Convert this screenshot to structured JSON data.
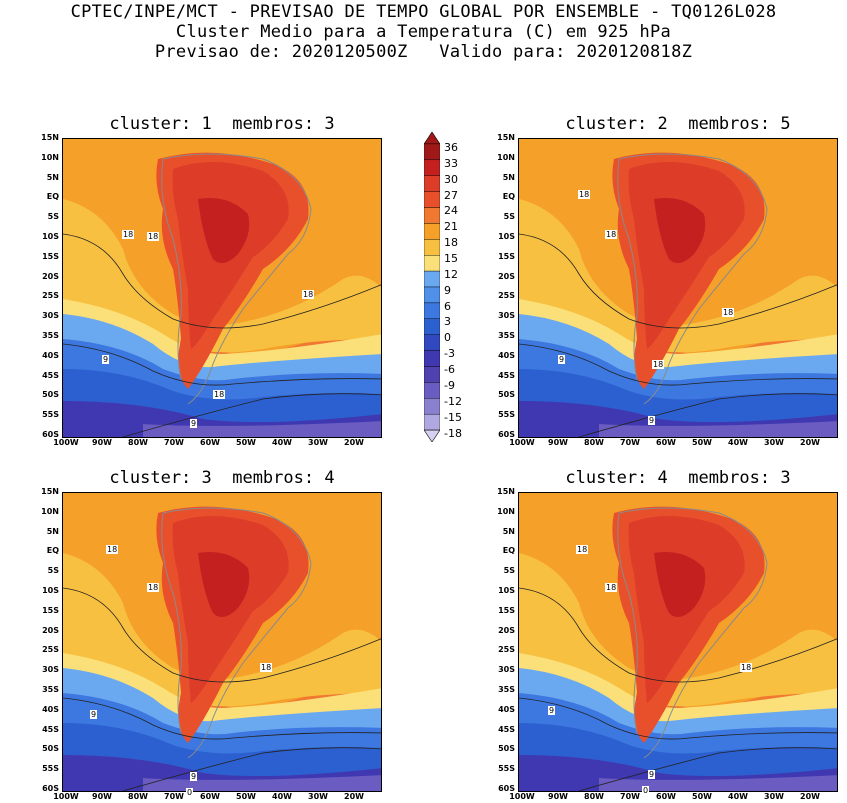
{
  "header": {
    "line1": "CPTEC/INPE/MCT - PREVISAO DE TEMPO GLOBAL POR ENSEMBLE - TQ0126L028",
    "line2": "Cluster Medio para a Temperatura (C) em 925 hPa",
    "line3": "Previsao de: 2020120500Z   Valido para: 2020120818Z"
  },
  "panels": [
    {
      "title": "cluster: 1  membros: 3",
      "contours": [
        "18",
        "18",
        "18",
        "18",
        "9",
        "9"
      ]
    },
    {
      "title": "cluster: 2  membros: 5",
      "contours": [
        "18",
        "18",
        "18",
        "18",
        "9",
        "9"
      ]
    },
    {
      "title": "cluster: 3  membros: 4",
      "contours": [
        "18",
        "18",
        "18",
        "9",
        "9",
        "0"
      ]
    },
    {
      "title": "cluster: 4  membros: 3",
      "contours": [
        "18",
        "18",
        "18",
        "9",
        "9",
        "0"
      ]
    }
  ],
  "axes": {
    "lat_labels": [
      "15N",
      "10N",
      "5N",
      "EQ",
      "5S",
      "10S",
      "15S",
      "20S",
      "25S",
      "30S",
      "35S",
      "40S",
      "45S",
      "50S",
      "55S",
      "60S"
    ],
    "lon_labels": [
      "100W",
      "90W",
      "80W",
      "70W",
      "60W",
      "50W",
      "40W",
      "30W",
      "20W"
    ]
  },
  "colorbar": {
    "labels": [
      "36",
      "33",
      "30",
      "27",
      "24",
      "21",
      "18",
      "15",
      "12",
      "9",
      "6",
      "3",
      "0",
      "-3",
      "-6",
      "-9",
      "-12",
      "-15",
      "-18"
    ],
    "colors": [
      "#a01818",
      "#c42020",
      "#dc3c28",
      "#e8502c",
      "#f07830",
      "#f5a028",
      "#f8c040",
      "#fbe07a",
      "#6aa8f0",
      "#5090e8",
      "#3c78e0",
      "#2c60d0",
      "#3048c0",
      "#4038b0",
      "#5040b0",
      "#6a5cc0",
      "#8a80d0",
      "#b0a8e0"
    ]
  }
}
